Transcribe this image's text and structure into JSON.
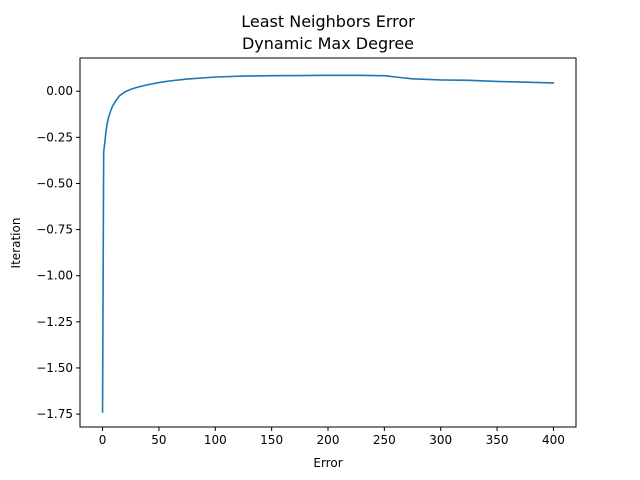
{
  "chart_data": {
    "type": "line",
    "title_lines": [
      "Least Neighbors Error",
      "Dynamic Max Degree"
    ],
    "xlabel": "Error",
    "ylabel": "Iteration",
    "xlim": [
      -20,
      420
    ],
    "ylim": [
      -1.82,
      0.18
    ],
    "xticks": [
      0,
      50,
      100,
      150,
      200,
      250,
      300,
      350,
      400
    ],
    "yticks": [
      0.0,
      -0.25,
      -0.5,
      -0.75,
      -1.0,
      -1.25,
      -1.5,
      -1.75
    ],
    "xtick_labels": [
      "0",
      "50",
      "100",
      "150",
      "200",
      "250",
      "300",
      "350",
      "400"
    ],
    "ytick_labels": [
      "0.00",
      "−0.25",
      "−0.50",
      "−0.75",
      "−1.00",
      "−1.25",
      "−1.50",
      "−1.75"
    ],
    "grid": false,
    "series": [
      {
        "color": "#1f77b4",
        "x": [
          0,
          1,
          2,
          3,
          4,
          5,
          7,
          9,
          12,
          15,
          20,
          25,
          30,
          40,
          50,
          60,
          75,
          100,
          125,
          150,
          175,
          200,
          225,
          250,
          260,
          275,
          300,
          325,
          350,
          375,
          400
        ],
        "y": [
          -1.74,
          -0.33,
          -0.28,
          -0.22,
          -0.18,
          -0.15,
          -0.11,
          -0.08,
          -0.05,
          -0.025,
          -0.003,
          0.01,
          0.02,
          0.035,
          0.047,
          0.056,
          0.066,
          0.077,
          0.082,
          0.084,
          0.085,
          0.086,
          0.086,
          0.084,
          0.077,
          0.067,
          0.061,
          0.059,
          0.053,
          0.049,
          0.045
        ]
      }
    ]
  }
}
